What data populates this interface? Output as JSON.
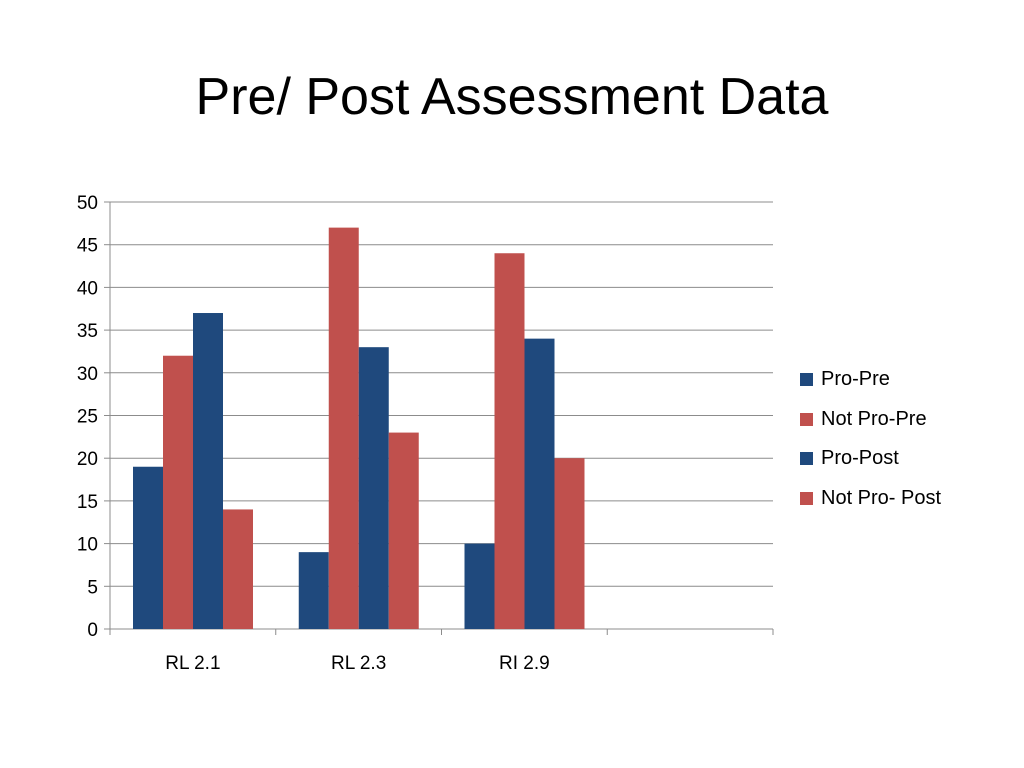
{
  "title": "Pre/ Post Assessment Data",
  "chart_data": {
    "type": "bar",
    "title": "Pre/ Post Assessment Data",
    "categories": [
      "RL 2.1",
      "RL 2.3",
      "RI 2.9",
      ""
    ],
    "series": [
      {
        "name": "Pro-Pre",
        "color": "#1f497d",
        "values": [
          19,
          9,
          10,
          null
        ]
      },
      {
        "name": "Not Pro-Pre",
        "color": "#c0504d",
        "values": [
          32,
          47,
          44,
          null
        ]
      },
      {
        "name": "Pro-Post",
        "color": "#1f497d",
        "values": [
          37,
          33,
          34,
          null
        ]
      },
      {
        "name": "Not Pro- Post",
        "color": "#c0504d",
        "values": [
          14,
          23,
          20,
          null
        ]
      }
    ],
    "ylim": [
      0,
      50
    ],
    "yticks": [
      0,
      5,
      10,
      15,
      20,
      25,
      30,
      35,
      40,
      45,
      50
    ],
    "grid": true,
    "legend": "right"
  }
}
